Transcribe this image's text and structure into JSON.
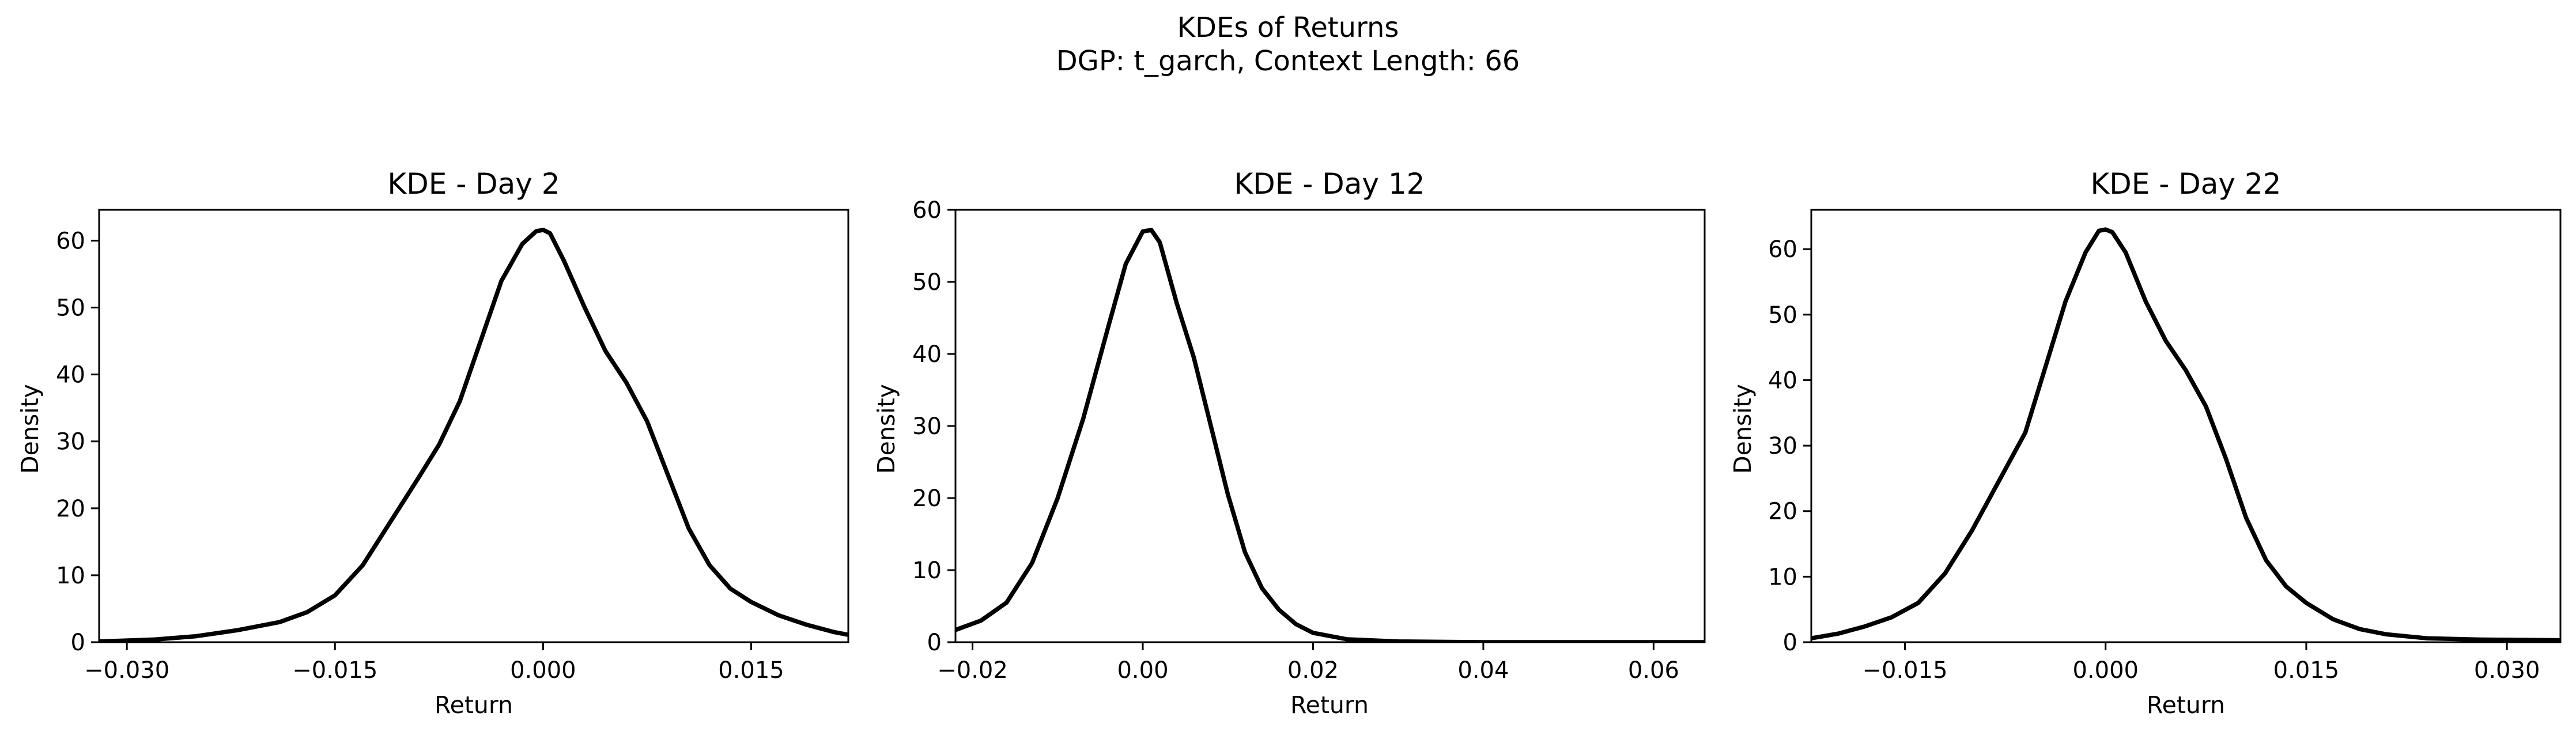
{
  "figure": {
    "title_line1": "KDEs of Returns",
    "title_line2": "DGP: t_garch, Context Length: 66"
  },
  "chart_data": [
    {
      "type": "line",
      "title": "KDE - Day 2",
      "xlabel": "Return",
      "ylabel": "Density",
      "xlim": [
        -0.032,
        0.022
      ],
      "ylim": [
        0,
        64.6
      ],
      "xticks": [
        -0.03,
        -0.015,
        0.0,
        0.015
      ],
      "xticklabels": [
        "−0.030",
        "−0.015",
        "0.000",
        "0.015"
      ],
      "yticks": [
        0,
        10,
        20,
        30,
        40,
        50,
        60
      ],
      "yticklabels": [
        "0",
        "10",
        "20",
        "30",
        "40",
        "50",
        "60"
      ],
      "grid": false,
      "series": [
        {
          "color": "#000000",
          "x": [
            -0.032,
            -0.028,
            -0.025,
            -0.022,
            -0.019,
            -0.017,
            -0.015,
            -0.013,
            -0.011,
            -0.009,
            -0.0075,
            -0.006,
            -0.0045,
            -0.003,
            -0.0015,
            -0.0005,
            0.0,
            0.0005,
            0.0015,
            0.003,
            0.0045,
            0.006,
            0.0075,
            0.009,
            0.0105,
            0.012,
            0.0135,
            0.015,
            0.017,
            0.019,
            0.021,
            0.022
          ],
          "y": [
            0.1,
            0.4,
            0.9,
            1.8,
            3.0,
            4.5,
            7.0,
            11.5,
            18.0,
            24.5,
            29.5,
            36.0,
            45.0,
            54.0,
            59.5,
            61.4,
            61.6,
            61.1,
            57.0,
            50.0,
            43.5,
            38.8,
            33.0,
            25.0,
            17.0,
            11.5,
            8.0,
            6.0,
            4.0,
            2.6,
            1.5,
            1.1
          ]
        }
      ]
    },
    {
      "type": "line",
      "title": "KDE - Day 12",
      "xlabel": "Return",
      "ylabel": "Density",
      "xlim": [
        -0.022,
        0.066
      ],
      "ylim": [
        0,
        60
      ],
      "xticks": [
        -0.02,
        0.0,
        0.02,
        0.04,
        0.06
      ],
      "xticklabels": [
        "−0.02",
        "0.00",
        "0.02",
        "0.04",
        "0.06"
      ],
      "yticks": [
        0,
        10,
        20,
        30,
        40,
        50,
        60
      ],
      "yticklabels": [
        "0",
        "10",
        "20",
        "30",
        "40",
        "50",
        "60"
      ],
      "grid": false,
      "series": [
        {
          "color": "#000000",
          "x": [
            -0.022,
            -0.019,
            -0.016,
            -0.013,
            -0.01,
            -0.007,
            -0.004,
            -0.002,
            0.0,
            0.001,
            0.002,
            0.004,
            0.006,
            0.008,
            0.01,
            0.012,
            0.014,
            0.016,
            0.018,
            0.02,
            0.024,
            0.03,
            0.04,
            0.05,
            0.066
          ],
          "y": [
            1.7,
            3.0,
            5.5,
            11.0,
            20.0,
            31.0,
            44.0,
            52.5,
            57.0,
            57.2,
            55.5,
            47.0,
            39.5,
            30.0,
            20.5,
            12.5,
            7.5,
            4.5,
            2.5,
            1.3,
            0.4,
            0.1,
            0.0,
            0.0,
            0.0
          ]
        }
      ]
    },
    {
      "type": "line",
      "title": "KDE - Day 22",
      "xlabel": "Return",
      "ylabel": "Density",
      "xlim": [
        -0.022,
        0.034
      ],
      "ylim": [
        0,
        66
      ],
      "xticks": [
        -0.015,
        0.0,
        0.015,
        0.03
      ],
      "xticklabels": [
        "−0.015",
        "0.000",
        "0.015",
        "0.030"
      ],
      "yticks": [
        0,
        10,
        20,
        30,
        40,
        50,
        60
      ],
      "yticklabels": [
        "0",
        "10",
        "20",
        "30",
        "40",
        "50",
        "60"
      ],
      "grid": false,
      "series": [
        {
          "color": "#000000",
          "x": [
            -0.022,
            -0.02,
            -0.018,
            -0.016,
            -0.014,
            -0.012,
            -0.01,
            -0.008,
            -0.006,
            -0.0045,
            -0.003,
            -0.0015,
            -0.0005,
            0.0,
            0.0005,
            0.0015,
            0.003,
            0.0045,
            0.006,
            0.0075,
            0.009,
            0.0105,
            0.012,
            0.0135,
            0.015,
            0.017,
            0.019,
            0.021,
            0.024,
            0.028,
            0.034
          ],
          "y": [
            0.6,
            1.3,
            2.4,
            3.8,
            6.0,
            10.5,
            17.0,
            24.5,
            32.0,
            42.0,
            52.0,
            59.5,
            62.8,
            63.0,
            62.6,
            59.5,
            52.0,
            46.0,
            41.5,
            36.0,
            28.0,
            19.0,
            12.5,
            8.5,
            6.0,
            3.5,
            2.0,
            1.2,
            0.6,
            0.4,
            0.3
          ]
        }
      ]
    }
  ]
}
